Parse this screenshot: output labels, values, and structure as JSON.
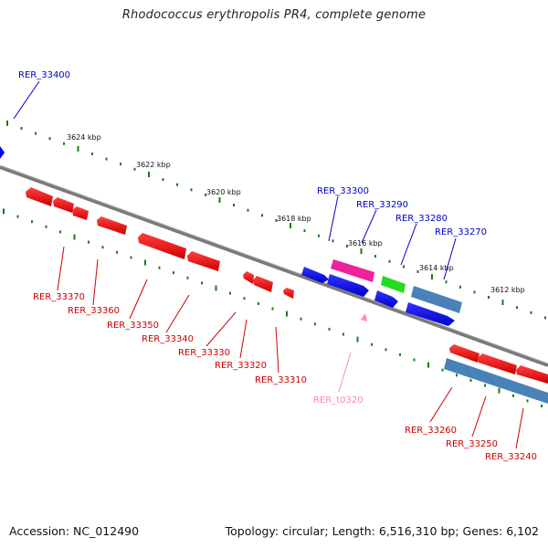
{
  "title": "Rhodococcus erythropolis PR4, complete genome",
  "footer": {
    "accession": "Accession: NC_012490",
    "summary": "Topology: circular; Length: 6,516,310 bp; Genes: 6,102"
  },
  "colors": {
    "backbone": "#808080",
    "tick": "#1a7a1a",
    "forward_gene": "#0000ee",
    "reverse_gene": "#ee0000",
    "trna": "#ff88cc",
    "magenta_gene": "#ee2299",
    "green_gene": "#22dd22",
    "steelblue_gene": "#4a82b8",
    "label_forward": "#0000cc",
    "label_reverse": "#cc0000",
    "label_trna": "#ff88bb"
  },
  "kbp_labels": [
    "3624 kbp",
    "3622 kbp",
    "3620 kbp",
    "3618 kbp",
    "3616 kbp",
    "3614 kbp",
    "3612 kbp"
  ],
  "gene_labels": {
    "forward": [
      "RER_33400",
      "RER_33300",
      "RER_33290",
      "RER_33280",
      "RER_33270"
    ],
    "reverse": [
      "RER_33370",
      "RER_33360",
      "RER_33350",
      "RER_33340",
      "RER_33330",
      "RER_33320",
      "RER_33310",
      "RER_33260",
      "RER_33250",
      "RER_33240"
    ],
    "trna": [
      "RER_t0320"
    ]
  }
}
